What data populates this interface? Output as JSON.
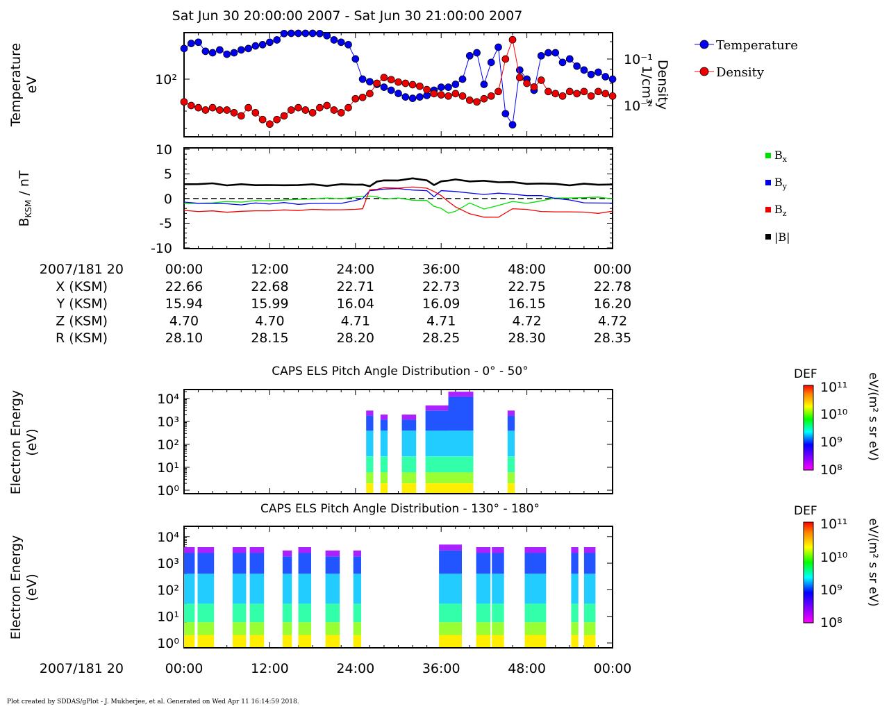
{
  "header": {
    "title": "Sat Jun 30 20:00:00 2007 - Sat Jun 30 21:00:00 2007"
  },
  "footer": {
    "text": "Plot created by SDDAS/gPlot - J. Mukherjee, et al.  Generated on Wed Apr 11 16:14:59 2018."
  },
  "colors": {
    "temperature": "#0000ff",
    "density": "#ff0000",
    "bx": "#00dd00",
    "by": "#0000ee",
    "bz": "#ee0000",
    "btot": "#000000"
  },
  "chart_data": [
    {
      "id": "plasma-moments",
      "type": "scatter",
      "ylabel_left": [
        "Temperature",
        "eV"
      ],
      "ylabel_right": [
        "Density",
        "1/cm³"
      ],
      "left_axis": {
        "scale": "log",
        "ticks": [
          "10²"
        ]
      },
      "right_axis": {
        "scale": "log",
        "ticks": [
          "10⁻¹",
          "10⁻²"
        ]
      },
      "legend": [
        "Temperature",
        "Density"
      ],
      "legend_position": "right",
      "x_minutes": [
        0,
        1,
        2,
        3,
        4,
        5,
        6,
        7,
        8,
        9,
        10,
        11,
        12,
        13,
        14,
        15,
        16,
        17,
        18,
        19,
        20,
        21,
        22,
        23,
        24,
        25,
        26,
        27,
        28,
        29,
        30,
        31,
        32,
        33,
        34,
        35,
        36,
        37,
        38,
        39,
        40,
        41,
        42,
        43,
        44,
        45,
        46,
        47,
        48,
        49,
        50,
        51,
        52,
        53,
        54,
        55,
        56,
        57,
        58,
        59,
        60
      ],
      "series": [
        {
          "name": "Temperature",
          "values": [
            185,
            205,
            210,
            175,
            170,
            180,
            165,
            170,
            180,
            185,
            195,
            200,
            210,
            220,
            250,
            270,
            260,
            255,
            260,
            250,
            240,
            220,
            210,
            200,
            150,
            100,
            95,
            90,
            85,
            80,
            75,
            70,
            68,
            70,
            72,
            80,
            85,
            85,
            90,
            100,
            160,
            170,
            90,
            140,
            190,
            50,
            40,
            120,
            100,
            80,
            160,
            170,
            170,
            140,
            150,
            130,
            120,
            110,
            115,
            105,
            100
          ]
        },
        {
          "name": "Density",
          "values": [
            0.012,
            0.01,
            0.009,
            0.008,
            0.009,
            0.008,
            0.008,
            0.007,
            0.006,
            0.009,
            0.007,
            0.005,
            0.004,
            0.005,
            0.006,
            0.008,
            0.009,
            0.008,
            0.007,
            0.009,
            0.01,
            0.008,
            0.007,
            0.009,
            0.014,
            0.015,
            0.018,
            0.03,
            0.04,
            0.036,
            0.032,
            0.03,
            0.028,
            0.026,
            0.022,
            0.018,
            0.017,
            0.016,
            0.018,
            0.016,
            0.013,
            0.012,
            0.014,
            0.016,
            0.02,
            0.1,
            0.26,
            0.04,
            0.03,
            0.025,
            0.035,
            0.02,
            0.018,
            0.016,
            0.02,
            0.018,
            0.02,
            0.016,
            0.02,
            0.018,
            0.016
          ]
        }
      ]
    },
    {
      "id": "magnetic-field",
      "type": "line",
      "ylabel": "B_KSM / nT",
      "yticks": [
        "10",
        "5",
        "0",
        "-5",
        "-10"
      ],
      "ylim": [
        -10,
        10
      ],
      "legend": [
        "Bx",
        "By",
        "Bz",
        "|B|"
      ],
      "legend_position": "right",
      "x_minutes": [
        0,
        2,
        4,
        6,
        8,
        10,
        12,
        14,
        16,
        18,
        20,
        22,
        24,
        25,
        26,
        27,
        28,
        30,
        32,
        34,
        35,
        36,
        37,
        38,
        40,
        42,
        44,
        46,
        48,
        50,
        52,
        54,
        56,
        58,
        60
      ],
      "series": [
        {
          "name": "Bx",
          "values": [
            -1.0,
            -1.0,
            -0.8,
            -0.7,
            -0.6,
            -0.5,
            -0.4,
            -0.3,
            -0.2,
            0.0,
            0.0,
            0.1,
            0.2,
            0.5,
            0.5,
            0.3,
            0.0,
            0.0,
            -0.2,
            -0.5,
            -1.5,
            -2.0,
            -3.0,
            -2.5,
            -1.0,
            -2.0,
            -1.5,
            -0.5,
            -1.0,
            -0.5,
            0.2,
            0.0,
            0.3,
            0.2,
            0.0
          ]
        },
        {
          "name": "By",
          "values": [
            -0.8,
            -0.9,
            -1.0,
            -1.1,
            -1.2,
            -1.0,
            -1.0,
            -0.9,
            -1.1,
            -1.0,
            -1.0,
            -0.9,
            -0.5,
            0.1,
            1.5,
            1.8,
            1.9,
            2.0,
            1.8,
            1.5,
            0.5,
            1.5,
            1.6,
            1.4,
            1.1,
            0.9,
            1.0,
            1.0,
            0.5,
            0.7,
            0.0,
            -0.3,
            -0.8,
            -1.0,
            -0.8
          ]
        },
        {
          "name": "Bz",
          "values": [
            -2.5,
            -2.5,
            -2.6,
            -2.7,
            -2.6,
            -2.5,
            -2.4,
            -2.4,
            -2.3,
            -2.3,
            -2.2,
            -2.3,
            -2.2,
            -2.0,
            1.7,
            2.0,
            2.1,
            2.2,
            2.3,
            2.1,
            1.5,
            0.5,
            -0.5,
            -1.8,
            -3.0,
            -3.8,
            -3.8,
            -2.0,
            -2.3,
            -2.5,
            -2.8,
            -2.6,
            -2.8,
            -3.0,
            -2.5
          ]
        },
        {
          "name": "|B|",
          "values": [
            2.9,
            3.0,
            3.0,
            2.8,
            2.8,
            2.8,
            2.7,
            2.7,
            2.8,
            2.8,
            2.7,
            2.8,
            2.9,
            2.8,
            2.5,
            3.5,
            3.6,
            3.8,
            4.0,
            3.8,
            2.7,
            3.5,
            3.7,
            3.8,
            3.6,
            3.5,
            3.4,
            3.3,
            3.0,
            3.1,
            2.9,
            2.8,
            2.9,
            2.9,
            2.8
          ]
        }
      ]
    },
    {
      "id": "els-pad-low",
      "type": "heatmap",
      "title": "CAPS ELS Pitch Angle Distribution - 0° - 50°",
      "ylabel": [
        "Electron Energy",
        "(eV)"
      ],
      "yticks": [
        "10⁴",
        "10³",
        "10²",
        "10¹",
        "10⁰"
      ],
      "colorbar": {
        "label": "DEF",
        "units": "eV/(m² s sr eV)",
        "ticks": [
          "10¹¹",
          "10¹⁰",
          "10⁹",
          "10⁸"
        ]
      },
      "blocks_minutes": [
        [
          25.5,
          26.5
        ],
        [
          27.5,
          28.5
        ],
        [
          30.5,
          32.5
        ],
        [
          33.8,
          37.0
        ],
        [
          37.0,
          40.5
        ],
        [
          45.3,
          46.3
        ]
      ],
      "block_top_energy_ev": [
        3000,
        2000,
        2000,
        5000,
        20000,
        3000
      ]
    },
    {
      "id": "els-pad-high",
      "type": "heatmap",
      "title": "CAPS ELS Pitch Angle Distribution - 130° - 180°",
      "ylabel": [
        "Electron Energy",
        "(eV)"
      ],
      "yticks": [
        "10⁴",
        "10³",
        "10²",
        "10¹",
        "10⁰"
      ],
      "colorbar": {
        "label": "DEF",
        "units": "eV/(m² s sr eV)",
        "ticks": [
          "10¹¹",
          "10¹⁰",
          "10⁹",
          "10⁸"
        ]
      },
      "blocks_minutes": [
        [
          0,
          1.5
        ],
        [
          1.9,
          4.2
        ],
        [
          6.8,
          8.7
        ],
        [
          9.2,
          11.2
        ],
        [
          13.8,
          15.1
        ],
        [
          16.0,
          17.8
        ],
        [
          19.8,
          21.8
        ],
        [
          23.7,
          24.8
        ],
        [
          35.7,
          38.9
        ],
        [
          40.9,
          42.9
        ],
        [
          43.1,
          44.8
        ],
        [
          47.7,
          50.7
        ],
        [
          54.2,
          55.2
        ],
        [
          56.0,
          57.6
        ]
      ],
      "block_top_energy_ev": [
        4000,
        4000,
        4000,
        4000,
        3000,
        4000,
        3000,
        3000,
        5000,
        4000,
        4000,
        4000,
        4000,
        4000
      ]
    }
  ],
  "time_axis": {
    "row_label": "2007/181 20",
    "ticks": [
      "00:00",
      "12:00",
      "24:00",
      "36:00",
      "48:00",
      "00:00"
    ]
  },
  "ephemeris": {
    "rows": [
      {
        "label": "X (KSM)",
        "values": [
          "22.66",
          "22.68",
          "22.71",
          "22.73",
          "22.75",
          "22.78"
        ]
      },
      {
        "label": "Y (KSM)",
        "values": [
          "15.94",
          "15.99",
          "16.04",
          "16.09",
          "16.15",
          "16.20"
        ]
      },
      {
        "label": "Z (KSM)",
        "values": [
          "4.70",
          "4.70",
          "4.71",
          "4.71",
          "4.72",
          "4.72"
        ]
      },
      {
        "label": "R (KSM)",
        "values": [
          "28.10",
          "28.15",
          "28.20",
          "28.25",
          "28.30",
          "28.35"
        ]
      }
    ]
  }
}
